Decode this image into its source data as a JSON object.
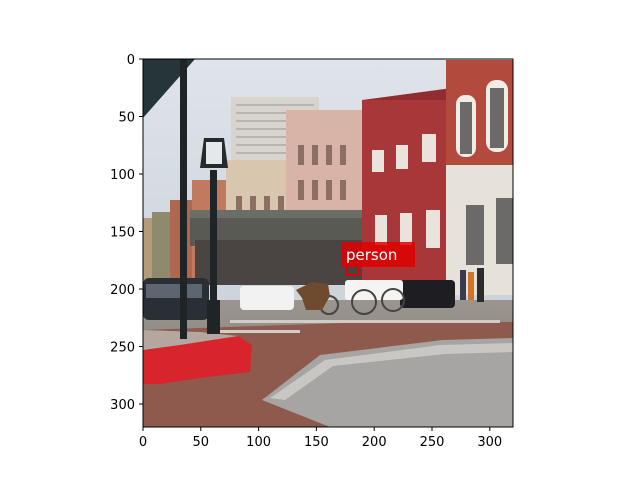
{
  "figure": {
    "image_description_size": [
      320,
      320
    ],
    "x_ticks": [
      "0",
      "50",
      "100",
      "150",
      "200",
      "250",
      "300"
    ],
    "y_ticks": [
      "0",
      "50",
      "100",
      "150",
      "200",
      "250",
      "300"
    ]
  },
  "detections": [
    {
      "label": "person",
      "box_color": "#e00000",
      "label_bg": "#e00000"
    }
  ],
  "colors": {
    "sky": "#cfd6de",
    "road": "#8c8782",
    "brick_road": "#8e5a4e",
    "curb_red": "#d8242c",
    "brick_building": "#a8373a",
    "beige_building": "#d9c6ae"
  }
}
